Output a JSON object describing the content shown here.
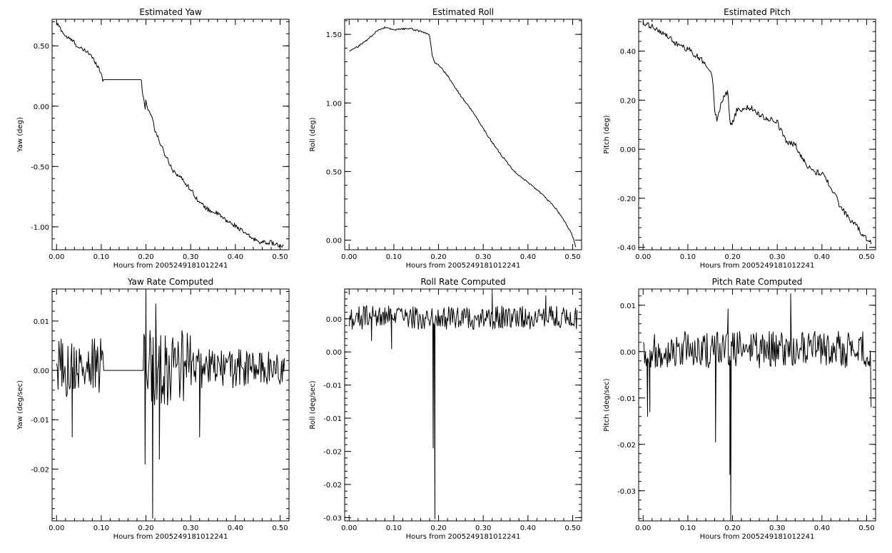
{
  "chart_data": [
    {
      "type": "line",
      "title": "Estimated Yaw",
      "xlabel": "Hours from 20052491810122​41",
      "ylabel": "Yaw (deg)",
      "xlim": [
        -0.01,
        0.52
      ],
      "ylim": [
        -1.19,
        0.72
      ],
      "xticks": [
        "0.00",
        "0.10",
        "0.20",
        "0.30",
        "0.40",
        "0.50"
      ],
      "yticks": [
        {
          "v": 0.5,
          "label": "0.50"
        },
        {
          "v": 0.0,
          "label": "0.00"
        },
        {
          "v": -0.5,
          "label": "-0.50"
        },
        {
          "v": -1.0,
          "label": "-1.00"
        }
      ],
      "x": [
        0.0,
        0.02,
        0.04,
        0.05,
        0.07,
        0.09,
        0.1,
        0.103,
        0.19,
        0.192,
        0.198,
        0.2,
        0.205,
        0.215,
        0.22,
        0.24,
        0.26,
        0.28,
        0.3,
        0.32,
        0.34,
        0.36,
        0.38,
        0.4,
        0.42,
        0.44,
        0.46,
        0.48,
        0.5,
        0.508
      ],
      "y": [
        0.69,
        0.58,
        0.53,
        0.48,
        0.45,
        0.35,
        0.27,
        0.22,
        0.22,
        0.12,
        -0.02,
        0.05,
        -0.03,
        -0.1,
        -0.2,
        -0.38,
        -0.53,
        -0.6,
        -0.69,
        -0.8,
        -0.86,
        -0.89,
        -0.95,
        -0.99,
        -1.05,
        -1.1,
        -1.13,
        -1.13,
        -1.16,
        -1.17
      ],
      "noise": 0.018
    },
    {
      "type": "line",
      "title": "Estimated Roll",
      "xlabel": "Hours from 20052491810122​41",
      "ylabel": "Roll (deg)",
      "xlim": [
        -0.01,
        0.52
      ],
      "ylim": [
        -0.07,
        1.61
      ],
      "xticks": [
        "0.00",
        "0.10",
        "0.20",
        "0.30",
        "0.40",
        "0.50"
      ],
      "yticks": [
        {
          "v": 1.5,
          "label": "1.50"
        },
        {
          "v": 1.0,
          "label": "1.00"
        },
        {
          "v": 0.5,
          "label": "0.50"
        },
        {
          "v": 0.0,
          "label": "0.00"
        }
      ],
      "x": [
        0.0,
        0.02,
        0.04,
        0.06,
        0.08,
        0.1,
        0.12,
        0.14,
        0.16,
        0.18,
        0.185,
        0.19,
        0.2,
        0.22,
        0.25,
        0.28,
        0.31,
        0.34,
        0.37,
        0.4,
        0.43,
        0.46,
        0.48,
        0.5,
        0.507
      ],
      "y": [
        1.38,
        1.41,
        1.46,
        1.52,
        1.55,
        1.53,
        1.54,
        1.54,
        1.52,
        1.5,
        1.36,
        1.3,
        1.28,
        1.2,
        1.05,
        0.92,
        0.76,
        0.62,
        0.5,
        0.42,
        0.34,
        0.24,
        0.15,
        0.03,
        -0.05
      ],
      "noise": 0.006
    },
    {
      "type": "line",
      "title": "Estimated Pitch",
      "xlabel": "Hours from 20052491810122​41",
      "ylabel": "Pitch (deg)",
      "xlim": [
        -0.01,
        0.52
      ],
      "ylim": [
        -0.41,
        0.53
      ],
      "xticks": [
        "0.00",
        "0.10",
        "0.20",
        "0.30",
        "0.40",
        "0.50"
      ],
      "yticks": [
        {
          "v": 0.4,
          "label": "0.40"
        },
        {
          "v": 0.2,
          "label": "0.20"
        },
        {
          "v": 0.0,
          "label": "0.00"
        },
        {
          "v": -0.2,
          "label": "-0.20"
        },
        {
          "v": -0.4,
          "label": "-0.40"
        }
      ],
      "x": [
        0.0,
        0.02,
        0.04,
        0.06,
        0.08,
        0.1,
        0.12,
        0.14,
        0.155,
        0.16,
        0.165,
        0.18,
        0.19,
        0.195,
        0.21,
        0.24,
        0.27,
        0.3,
        0.32,
        0.34,
        0.36,
        0.38,
        0.4,
        0.42,
        0.44,
        0.46,
        0.48,
        0.5,
        0.51
      ],
      "y": [
        0.51,
        0.5,
        0.48,
        0.45,
        0.42,
        0.41,
        0.38,
        0.35,
        0.3,
        0.15,
        0.12,
        0.22,
        0.23,
        0.09,
        0.16,
        0.17,
        0.13,
        0.11,
        0.03,
        0.02,
        -0.05,
        -0.09,
        -0.1,
        -0.15,
        -0.23,
        -0.28,
        -0.32,
        -0.37,
        -0.38
      ],
      "noise": 0.012
    },
    {
      "type": "line",
      "title": "Yaw Rate Computed",
      "xlabel": "Hours from 20052491810122​41",
      "ylabel": "Yaw (deg/sec)",
      "xlim": [
        -0.01,
        0.52
      ],
      "ylim": [
        -0.0305,
        0.0165
      ],
      "xticks": [
        "0.00",
        "0.10",
        "0.20",
        "0.30",
        "0.40",
        "0.50"
      ],
      "yticks": [
        {
          "v": 0.01,
          "label": "0.01"
        },
        {
          "v": 0.0,
          "label": "0.00"
        },
        {
          "v": -0.01,
          "label": "-0.01"
        },
        {
          "v": -0.02,
          "label": "-0.02"
        }
      ],
      "flat": [
        0.105,
        0.195
      ],
      "amps": [
        [
          0.0,
          0.105,
          0.006
        ],
        [
          0.195,
          0.3,
          0.008
        ],
        [
          0.3,
          0.51,
          0.004
        ]
      ],
      "spikes": [
        {
          "x": 0.035,
          "y": -0.0135
        },
        {
          "x": 0.2,
          "y": 0.0165
        },
        {
          "x": 0.198,
          "y": -0.019
        },
        {
          "x": 0.215,
          "y": -0.03
        },
        {
          "x": 0.222,
          "y": 0.0135
        },
        {
          "x": 0.23,
          "y": -0.018
        },
        {
          "x": 0.32,
          "y": -0.0135
        }
      ]
    },
    {
      "type": "line",
      "title": "Roll Rate Computed",
      "xlabel": "Hours from 20052491810122​41",
      "ylabel": "Roll (deg/sec)",
      "xlim": [
        -0.01,
        0.52
      ],
      "ylim": [
        -0.0305,
        0.0045
      ],
      "xticks": [
        "0.00",
        "0.10",
        "0.20",
        "0.30",
        "0.40",
        "0.50"
      ],
      "yticks": [
        {
          "v": 0.0,
          "label": "0.00"
        },
        {
          "v": -0.005,
          "label": "0.00"
        },
        {
          "v": -0.01,
          "label": "-0.01"
        },
        {
          "v": -0.015,
          "label": "-0.01"
        },
        {
          "v": -0.02,
          "label": "-0.02"
        },
        {
          "v": -0.025,
          "label": "-0.02"
        },
        {
          "v": -0.03,
          "label": "-0.03"
        }
      ],
      "base": 0.0,
      "amps": [
        [
          0.0,
          0.51,
          0.0018
        ]
      ],
      "spikes": [
        {
          "x": 0.05,
          "y": -0.0033
        },
        {
          "x": 0.095,
          "y": -0.0045
        },
        {
          "x": 0.188,
          "y": -0.0195
        },
        {
          "x": 0.192,
          "y": -0.0302
        },
        {
          "x": 0.32,
          "y": 0.004
        },
        {
          "x": 0.44,
          "y": 0.0035
        }
      ]
    },
    {
      "type": "line",
      "title": "Pitch Rate Computed",
      "xlabel": "Hours from 20052491810122​41",
      "ylabel": "Pitch (deg/sec)",
      "xlim": [
        -0.01,
        0.52
      ],
      "ylim": [
        -0.0365,
        0.0135
      ],
      "xticks": [
        "0.00",
        "0.10",
        "0.20",
        "0.30",
        "0.40",
        "0.50"
      ],
      "yticks": [
        {
          "v": 0.01,
          "label": "0.01"
        },
        {
          "v": 0.0,
          "label": "0.00"
        },
        {
          "v": -0.01,
          "label": "-0.01"
        },
        {
          "v": -0.02,
          "label": "-0.02"
        },
        {
          "v": -0.03,
          "label": "-0.03"
        }
      ],
      "base": 0.0,
      "amps": [
        [
          0.0,
          0.51,
          0.004
        ]
      ],
      "spikes": [
        {
          "x": 0.01,
          "y": -0.014
        },
        {
          "x": 0.015,
          "y": -0.013
        },
        {
          "x": 0.162,
          "y": -0.0195
        },
        {
          "x": 0.19,
          "y": 0.0092
        },
        {
          "x": 0.194,
          "y": -0.0265
        },
        {
          "x": 0.196,
          "y": -0.0365
        },
        {
          "x": 0.33,
          "y": 0.0125
        },
        {
          "x": 0.51,
          "y": -0.012
        }
      ]
    }
  ]
}
